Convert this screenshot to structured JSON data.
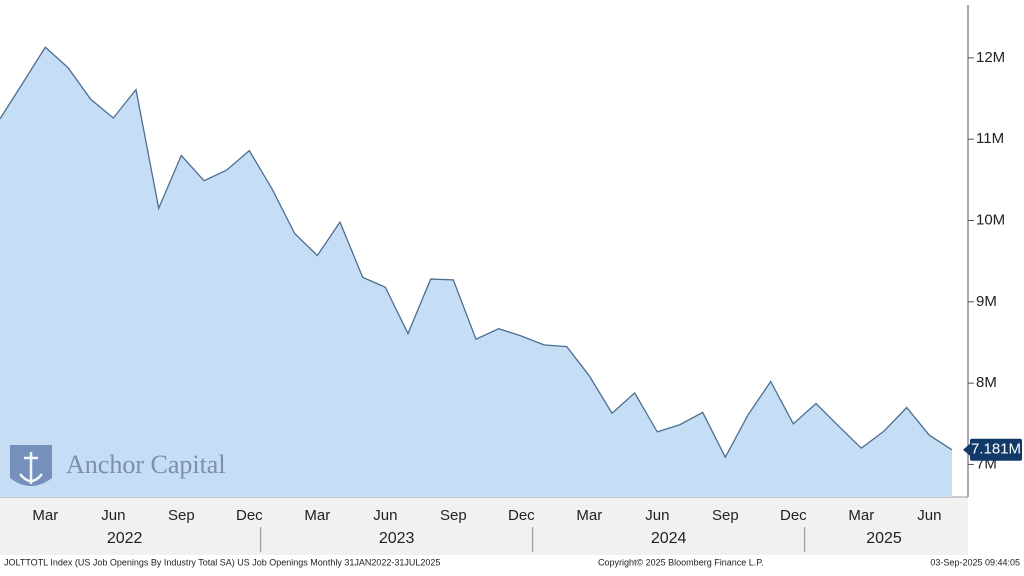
{
  "chart_data": {
    "type": "area",
    "categories": [
      null,
      null,
      "Mar",
      null,
      null,
      "Jun",
      null,
      null,
      "Sep",
      null,
      null,
      "Dec",
      null,
      null,
      "Mar",
      null,
      null,
      "Jun",
      null,
      null,
      "Sep",
      null,
      null,
      "Dec",
      null,
      null,
      "Mar",
      null,
      null,
      "Jun",
      null,
      null,
      "Sep",
      null,
      null,
      "Dec",
      null,
      null,
      "Mar",
      null,
      null,
      "Jun",
      null
    ],
    "years": [
      "2022",
      "2023",
      "2024",
      "2025"
    ],
    "values": [
      11.25,
      11.69,
      12.13,
      11.88,
      11.49,
      11.26,
      11.61,
      10.15,
      10.8,
      10.49,
      10.62,
      10.86,
      10.39,
      9.84,
      9.57,
      9.98,
      9.3,
      9.18,
      8.61,
      9.28,
      9.27,
      8.54,
      8.67,
      8.58,
      8.47,
      8.45,
      8.09,
      7.63,
      7.88,
      7.4,
      7.49,
      7.64,
      7.09,
      7.61,
      8.02,
      7.5,
      7.75,
      7.47,
      7.2,
      7.41,
      7.7,
      7.36,
      7.181
    ],
    "last_value_label": "7.181M",
    "color": "#c6ddf6",
    "line_color": "#4d6f90",
    "ylim": [
      6.6,
      12.65
    ],
    "yticks": [
      {
        "value": 7,
        "label": "7M"
      },
      {
        "value": 8,
        "label": "8M"
      },
      {
        "value": 9,
        "label": "9M"
      },
      {
        "value": 10,
        "label": "10M"
      },
      {
        "value": 11,
        "label": "11M"
      },
      {
        "value": 12,
        "label": "12M"
      }
    ],
    "watermark": "Anchor Capital",
    "source": "JOLTTOTL Index (US Job Openings By Industry Total SA) US Job Openings  Monthly 31JAN2022-31JUL2025",
    "copyright": "Copyright© 2025 Bloomberg Finance L.P.",
    "timestamp": "03-Sep-2025 09:44:05"
  }
}
